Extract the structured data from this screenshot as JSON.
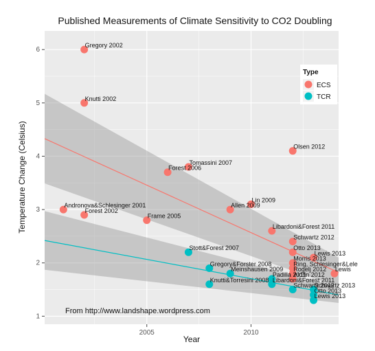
{
  "chart_data": {
    "type": "scatter",
    "title": "Published Measurements of Climate Sensitivity to CO2 Doubling",
    "xlabel": "Year",
    "ylabel": "Temperature Change (Celsius)",
    "xlim": [
      2000.1,
      2014.2
    ],
    "ylim": [
      0.85,
      6.35
    ],
    "xticks": [
      2005,
      2010
    ],
    "yticks": [
      1,
      2,
      3,
      4,
      5,
      6
    ],
    "grid": true,
    "legend": {
      "title": "Type",
      "position": "right",
      "entries": [
        {
          "name": "ECS",
          "color": "#F8766D"
        },
        {
          "name": "TCR",
          "color": "#00BFC4"
        }
      ]
    },
    "annotation": "From http://www.landshape.wordpress.com",
    "series": [
      {
        "name": "ECS",
        "color": "#F8766D",
        "points": [
          {
            "x": 2002,
            "y": 6.0,
            "label": "Gregory 2002"
          },
          {
            "x": 2002,
            "y": 5.0,
            "label": "Knutti 2002"
          },
          {
            "x": 2001,
            "y": 3.0,
            "label": "Andronova&Schlesinger 2001"
          },
          {
            "x": 2002,
            "y": 2.9,
            "label": "Forest 2002"
          },
          {
            "x": 2005,
            "y": 2.8,
            "label": "Frame 2005"
          },
          {
            "x": 2006,
            "y": 3.7,
            "label": "Forest 2006"
          },
          {
            "x": 2007,
            "y": 3.8,
            "label": "Tomassini 2007"
          },
          {
            "x": 2009,
            "y": 3.0,
            "label": "Allen 2009"
          },
          {
            "x": 2010,
            "y": 3.1,
            "label": "Lin 2009"
          },
          {
            "x": 2011,
            "y": 2.6,
            "label": "Libardoni&Forest 2011"
          },
          {
            "x": 2012,
            "y": 4.1,
            "label": "Olsen 2012"
          },
          {
            "x": 2012,
            "y": 2.4,
            "label": "Schwartz 2012"
          },
          {
            "x": 2012,
            "y": 2.2,
            "label": "Otto 2013"
          },
          {
            "x": 2013,
            "y": 2.1,
            "label": "Lewis 2013"
          },
          {
            "x": 2012,
            "y": 2.0,
            "label": "Morris 2013"
          },
          {
            "x": 2012,
            "y": 1.9,
            "label": "Ring, Schlesinger&Lele"
          },
          {
            "x": 2012,
            "y": 1.8,
            "label": "Rogelj 2012"
          },
          {
            "x": 2012,
            "y": 1.7,
            "label": "Aldrin 2012"
          },
          {
            "x": 2014,
            "y": 1.8,
            "label": "Lewis"
          }
        ]
      },
      {
        "name": "TCR",
        "color": "#00BFC4",
        "points": [
          {
            "x": 2007,
            "y": 2.2,
            "label": "Stott&Forest 2007"
          },
          {
            "x": 2008,
            "y": 1.9,
            "label": "Gregory&Forster 2008"
          },
          {
            "x": 2009,
            "y": 1.8,
            "label": "Meinshausen 2009"
          },
          {
            "x": 2008,
            "y": 1.6,
            "label": "Knutti&Torresini 2008"
          },
          {
            "x": 2011,
            "y": 1.7,
            "label": "Padilla 2011"
          },
          {
            "x": 2011,
            "y": 1.6,
            "label": "Libardoni&Forest 2011"
          },
          {
            "x": 2012,
            "y": 1.5,
            "label": "Schwartz 2012"
          },
          {
            "x": 2013,
            "y": 1.5,
            "label": "Schwartz 2013"
          },
          {
            "x": 2013,
            "y": 1.4,
            "label": "Otto 2013"
          },
          {
            "x": 2013,
            "y": 1.3,
            "label": "Lewis 2013"
          }
        ]
      }
    ],
    "trend": [
      {
        "name": "ECS",
        "color": "#F8766D",
        "x": [
          2000.1,
          2014.2
        ],
        "y": [
          4.33,
          1.82
        ],
        "band_upper": [
          5.17,
          2.1
        ],
        "band_lower": [
          3.49,
          1.55
        ]
      },
      {
        "name": "TCR",
        "color": "#00BFC4",
        "x": [
          2000.1,
          2014.2
        ],
        "y": [
          2.42,
          1.4
        ],
        "band_upper": [
          2.97,
          1.55
        ],
        "band_lower": [
          1.87,
          1.25
        ]
      }
    ]
  }
}
